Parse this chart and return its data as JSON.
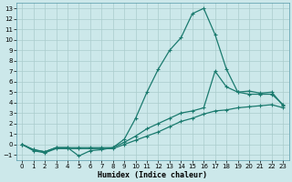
{
  "xlabel": "Humidex (Indice chaleur)",
  "background_color": "#cce8ea",
  "grid_color": "#aacccc",
  "line_color": "#1a7a6e",
  "xlim": [
    -0.5,
    23.5
  ],
  "ylim": [
    -1.5,
    13.5
  ],
  "xticks": [
    0,
    1,
    2,
    3,
    4,
    5,
    6,
    7,
    8,
    9,
    10,
    11,
    12,
    13,
    14,
    15,
    16,
    17,
    18,
    19,
    20,
    21,
    22,
    23
  ],
  "yticks": [
    -1,
    0,
    1,
    2,
    3,
    4,
    5,
    6,
    7,
    8,
    9,
    10,
    11,
    12,
    13
  ],
  "line_peak_x": [
    0,
    1,
    2,
    3,
    4,
    5,
    6,
    7,
    8,
    9,
    10,
    11,
    12,
    13,
    14,
    15,
    16,
    17,
    18,
    19,
    20,
    21,
    22,
    23
  ],
  "line_peak_y": [
    0.0,
    -0.5,
    -0.7,
    -0.3,
    -0.3,
    -1.1,
    -0.6,
    -0.5,
    -0.3,
    0.5,
    2.5,
    5.0,
    7.2,
    9.0,
    10.2,
    12.5,
    13.0,
    10.5,
    7.2,
    5.0,
    4.8,
    4.8,
    4.8,
    3.8
  ],
  "line_mid_x": [
    0,
    1,
    2,
    3,
    4,
    5,
    6,
    7,
    8,
    9,
    10,
    11,
    12,
    13,
    14,
    15,
    16,
    17,
    18,
    19,
    20,
    21,
    22,
    23
  ],
  "line_mid_y": [
    0.0,
    -0.5,
    -0.7,
    -0.3,
    -0.3,
    -0.3,
    -0.3,
    -0.3,
    -0.3,
    0.2,
    0.8,
    1.5,
    2.0,
    2.5,
    3.0,
    3.2,
    3.5,
    7.0,
    5.5,
    5.0,
    5.1,
    4.9,
    5.0,
    3.7
  ],
  "line_low_x": [
    0,
    1,
    2,
    3,
    4,
    5,
    6,
    7,
    8,
    9,
    10,
    11,
    12,
    13,
    14,
    15,
    16,
    17,
    18,
    19,
    20,
    21,
    22,
    23
  ],
  "line_low_y": [
    0.0,
    -0.6,
    -0.8,
    -0.4,
    -0.4,
    -0.4,
    -0.4,
    -0.4,
    -0.4,
    0.0,
    0.4,
    0.8,
    1.2,
    1.7,
    2.2,
    2.5,
    2.9,
    3.2,
    3.3,
    3.5,
    3.6,
    3.7,
    3.8,
    3.5
  ],
  "markersize": 3,
  "linewidth": 0.9
}
